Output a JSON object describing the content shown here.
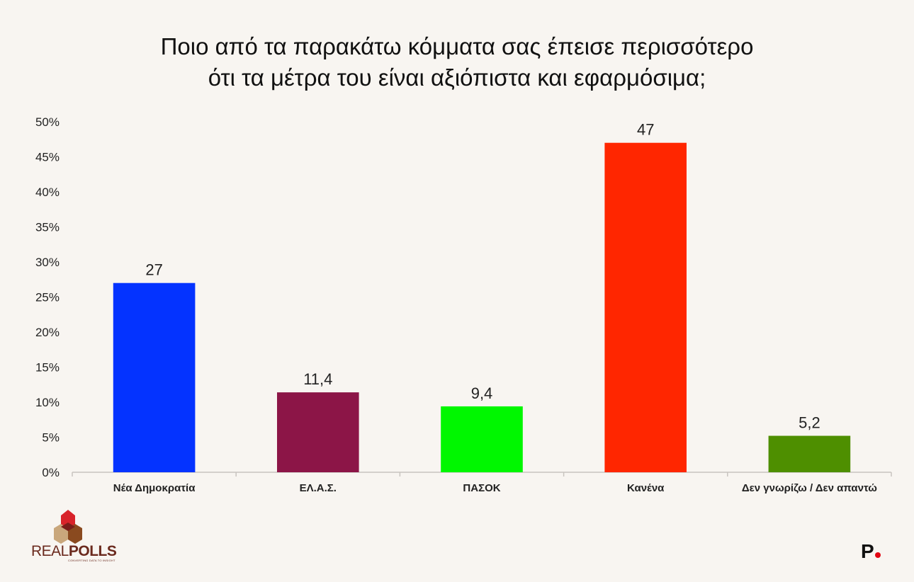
{
  "title_line1": "Ποιο από τα παρακάτω κόμματα σας έπεισε περισσότερο",
  "title_line2": "ότι τα μέτρα του είναι αξιόπιστα και εφαρμόσιμα;",
  "chart_data": {
    "type": "bar",
    "title": "Ποιο από τα παρακάτω κόμματα σας έπεισε περισσότερο ότι τα μέτρα του είναι αξιόπιστα και εφαρμόσιμα;",
    "categories": [
      "Νέα Δημοκρατία",
      "ΕΛ.Α.Σ.",
      "ΠΑΣΟΚ",
      "Κανένα",
      "Δεν γνωρίζω / Δεν απαντώ"
    ],
    "values": [
      27,
      11.4,
      9.4,
      47,
      5.2
    ],
    "value_labels": [
      "27",
      "11,4",
      "9,4",
      "47",
      "5,2"
    ],
    "colors": [
      "#0433ff",
      "#8c1547",
      "#00f700",
      "#ff2600",
      "#4e8f00"
    ],
    "ylim": [
      0,
      50
    ],
    "yticks": [
      "0%",
      "5%",
      "10%",
      "15%",
      "20%",
      "25%",
      "30%",
      "35%",
      "40%",
      "45%",
      "50%"
    ],
    "grid": false
  },
  "logos": {
    "realpolls_part1": "REAL",
    "realpolls_part2": "POLLS",
    "realpolls_tagline": "CONVERTING DATA TO INSIGHT",
    "publisher_mark": "P"
  }
}
